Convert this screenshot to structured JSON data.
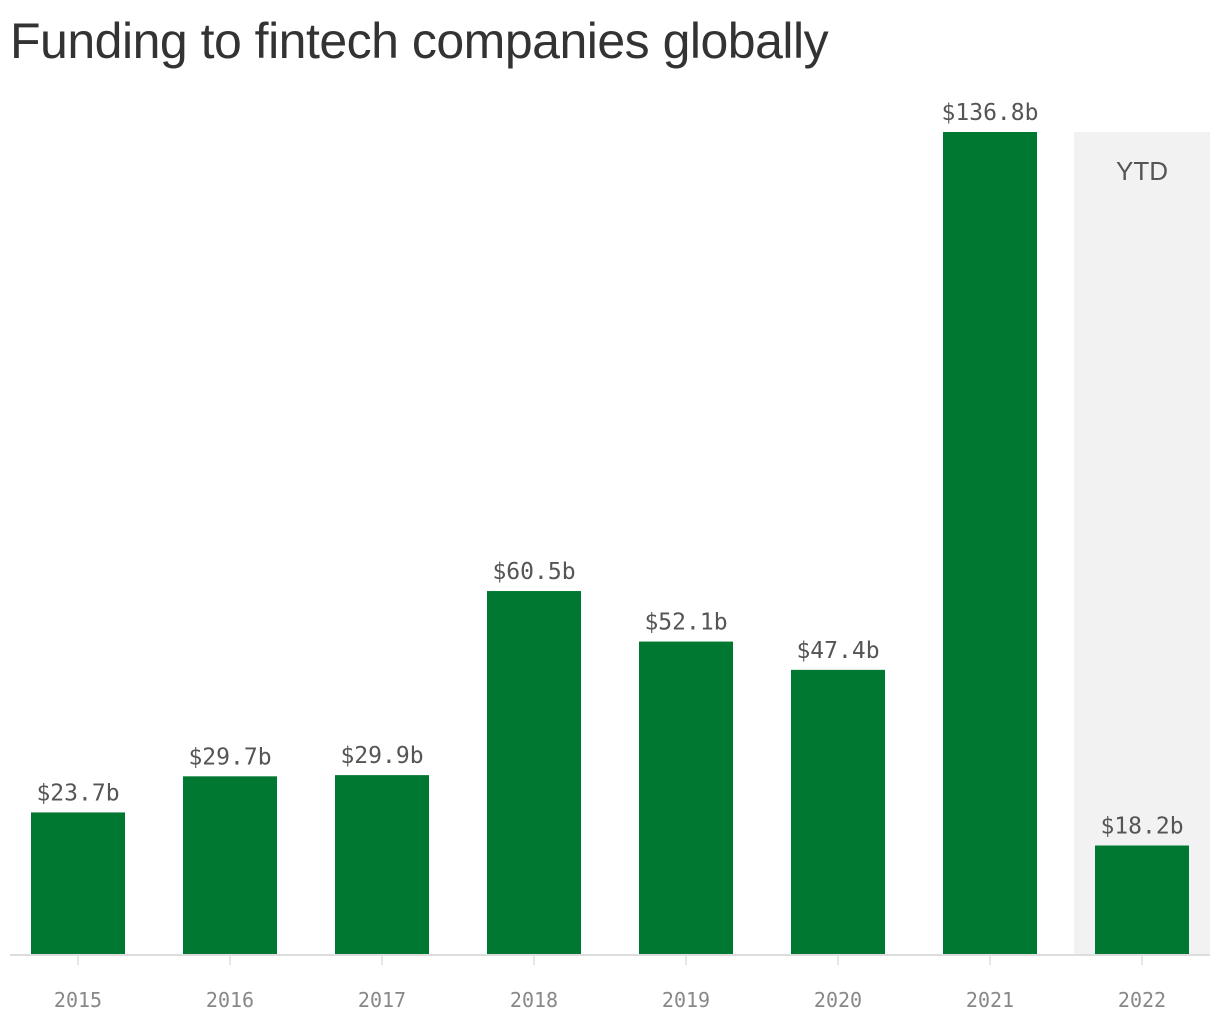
{
  "chart_data": {
    "type": "bar",
    "title": "Funding to fintech companies globally",
    "categories": [
      "2015",
      "2016",
      "2017",
      "2018",
      "2019",
      "2020",
      "2021",
      "2022"
    ],
    "values": [
      23.7,
      29.7,
      29.9,
      60.5,
      52.1,
      47.4,
      136.8,
      18.2
    ],
    "data_labels": [
      "$23.7b",
      "$29.7b",
      "$29.9b",
      "$60.5b",
      "$52.1b",
      "$47.4b",
      "$136.8b",
      "$18.2b"
    ],
    "ylim": [
      0,
      136.8
    ],
    "grid": false,
    "annotations": [
      {
        "category": "2022",
        "text": "YTD"
      }
    ],
    "colors": {
      "bar": "#017832",
      "highlight_band": "#f2f2f2",
      "axis": "#dddddd",
      "title": "#333333",
      "value_label": "#555555",
      "tick_label": "#888888"
    }
  }
}
